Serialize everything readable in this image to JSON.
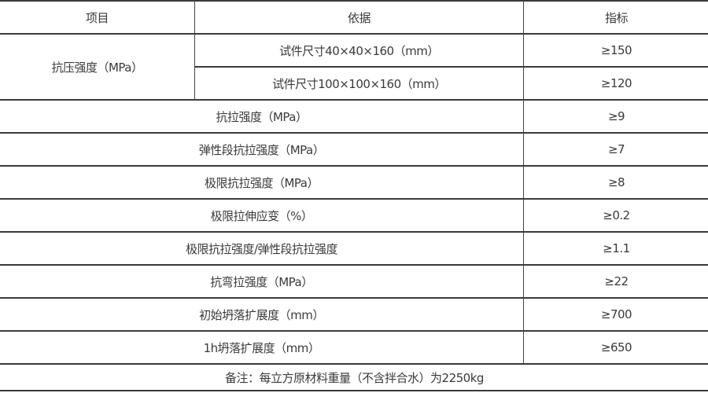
{
  "header": {
    "item": "项目",
    "basis": "依据",
    "index": "指标"
  },
  "compressive": {
    "label": "抗压强度（MPa）",
    "rows": [
      {
        "basis": "试件尺寸40×40×160（mm）",
        "value": "≥150"
      },
      {
        "basis": "试件尺寸100×100×160（mm）",
        "value": "≥120"
      }
    ]
  },
  "rows": [
    {
      "item": "抗拉强度（MPa）",
      "value": "≥9"
    },
    {
      "item": "弹性段抗拉强度（MPa）",
      "value": "≥7"
    },
    {
      "item": "极限抗拉强度（MPa）",
      "value": "≥8"
    },
    {
      "item": "极限拉伸应变（%）",
      "value": "≥0.2"
    },
    {
      "item": "极限抗拉强度/弹性段抗拉强度",
      "value": "≥1.1"
    },
    {
      "item": "抗弯拉强度（MPa）",
      "value": "≥22"
    },
    {
      "item": "初始坍落扩展度（mm）",
      "value": "≥700"
    },
    {
      "item": "1h坍落扩展度（mm）",
      "value": "≥650"
    }
  ],
  "note": "备注：每立方原材料重量（不含拌合水）为2250kg"
}
